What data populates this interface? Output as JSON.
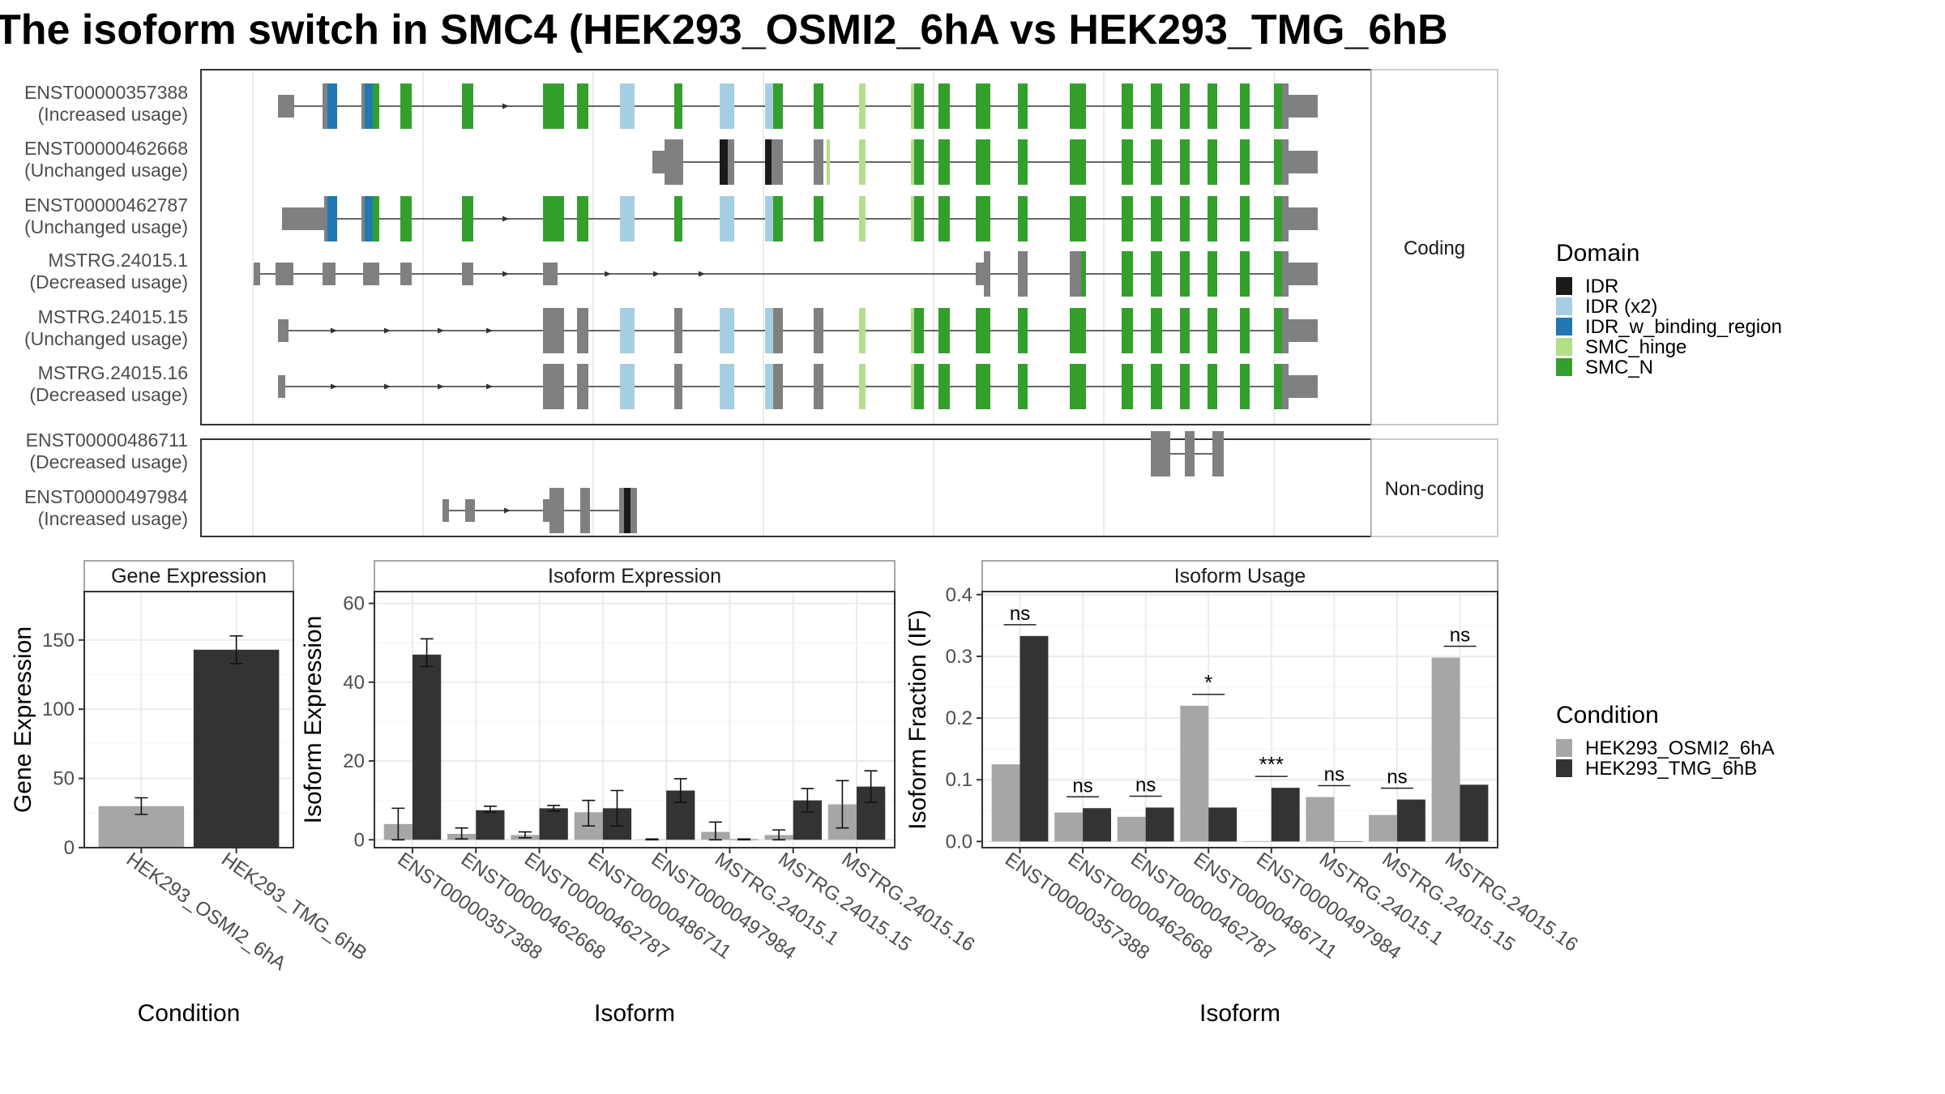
{
  "title": "The isoform switch in SMC4 (HEK293_OSMI2_6hA vs HEK293_TMG_6hB",
  "structure": {
    "coding_label": "Coding",
    "noncoding_label": "Non-coding",
    "coding_transcripts": [
      {
        "id": "ENST00000357388",
        "usage": "(Increased usage)"
      },
      {
        "id": "ENST00000462668",
        "usage": "(Unchanged usage)"
      },
      {
        "id": "ENST00000462787",
        "usage": "(Unchanged usage)"
      },
      {
        "id": "MSTRG.24015.1",
        "usage": "(Decreased usage)"
      },
      {
        "id": "MSTRG.24015.15",
        "usage": "(Unchanged usage)"
      },
      {
        "id": "MSTRG.24015.16",
        "usage": "(Decreased usage)"
      }
    ],
    "noncoding_transcripts": [
      {
        "id": "ENST00000486711",
        "usage": "(Decreased usage)"
      },
      {
        "id": "ENST00000497984",
        "usage": "(Increased usage)"
      }
    ]
  },
  "legend_domain": {
    "title": "Domain",
    "items": [
      {
        "label": "IDR",
        "color": "#1a1a1a"
      },
      {
        "label": "IDR (x2)",
        "color": "#a6cee3"
      },
      {
        "label": "IDR_w_binding_region",
        "color": "#1f78b4"
      },
      {
        "label": "SMC_hinge",
        "color": "#b2df8a"
      },
      {
        "label": "SMC_N",
        "color": "#33a02c"
      }
    ]
  },
  "legend_condition": {
    "title": "Condition",
    "items": [
      {
        "label": "HEK293_OSMI2_6hA",
        "color": "#a6a6a6"
      },
      {
        "label": "HEK293_TMG_6hB",
        "color": "#333333"
      }
    ]
  },
  "chart_data": [
    {
      "type": "bar",
      "title": "Gene Expression",
      "xlabel": "Condition",
      "ylabel": "Gene Expression",
      "categories": [
        "HEK293_OSMI2_6hA",
        "HEK293_TMG_6hB"
      ],
      "values": [
        30,
        143
      ],
      "errors": [
        [
          24,
          36
        ],
        [
          133,
          153
        ]
      ],
      "ylim": [
        0,
        185
      ],
      "yticks": [
        0,
        50,
        100,
        150
      ],
      "grid": true
    },
    {
      "type": "bar",
      "title": "Isoform Expression",
      "xlabel": "Isoform",
      "ylabel": "Isoform Expression",
      "categories": [
        "ENST00000357388",
        "ENST00000462668",
        "ENST00000462787",
        "ENST00000486711",
        "ENST00000497984",
        "MSTRG.24015.1",
        "MSTRG.24015.15",
        "MSTRG.24015.16"
      ],
      "series": [
        {
          "name": "HEK293_OSMI2_6hA",
          "values": [
            4,
            1.5,
            1.2,
            7,
            0.1,
            2,
            1.2,
            9
          ],
          "errors": [
            [
              0,
              8
            ],
            [
              0.2,
              3
            ],
            [
              0.5,
              2
            ],
            [
              3.5,
              10
            ],
            [
              0,
              0.2
            ],
            [
              0,
              4.5
            ],
            [
              0,
              2.5
            ],
            [
              3,
              15
            ]
          ]
        },
        {
          "name": "HEK293_TMG_6hB",
          "values": [
            47,
            7.5,
            8,
            8,
            12.5,
            0.1,
            10,
            13.5
          ],
          "errors": [
            [
              44,
              51
            ],
            [
              7,
              8.5
            ],
            [
              7.3,
              8.7
            ],
            [
              3.5,
              12.5
            ],
            [
              9.5,
              15.5
            ],
            [
              0,
              0.2
            ],
            [
              7,
              13
            ],
            [
              9.5,
              17.5
            ]
          ]
        }
      ],
      "ylim": [
        -2,
        63
      ],
      "yticks": [
        0,
        20,
        40,
        60
      ],
      "grid": true
    },
    {
      "type": "bar",
      "title": "Isoform Usage",
      "xlabel": "Isoform",
      "ylabel": "Isoform Fraction (IF)",
      "categories": [
        "ENST00000357388",
        "ENST00000462668",
        "ENST00000462787",
        "ENST00000486711",
        "ENST00000497984",
        "MSTRG.24015.1",
        "MSTRG.24015.15",
        "MSTRG.24015.16"
      ],
      "series": [
        {
          "name": "HEK293_OSMI2_6hA",
          "values": [
            0.125,
            0.047,
            0.04,
            0.22,
            0.0,
            0.072,
            0.043,
            0.298
          ]
        },
        {
          "name": "HEK293_TMG_6hB",
          "values": [
            0.333,
            0.054,
            0.055,
            0.055,
            0.087,
            0.0,
            0.068,
            0.092
          ]
        }
      ],
      "annotations": [
        "ns",
        "ns",
        "ns",
        "*",
        "***",
        "ns",
        "ns",
        "ns"
      ],
      "ylim": [
        -0.01,
        0.405
      ],
      "yticks": [
        0.0,
        0.1,
        0.2,
        0.3,
        0.4
      ],
      "grid": true
    }
  ]
}
